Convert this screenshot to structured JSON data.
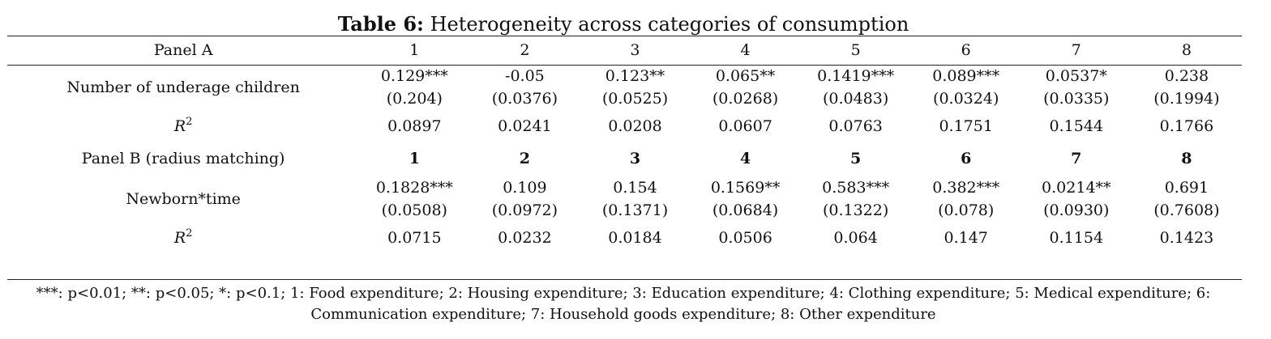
{
  "table": {
    "title_bold": "Table 6:",
    "title_rest": "Heterogeneity across categories of consumption",
    "panel_a": {
      "label": "Panel A",
      "columns": [
        "1",
        "2",
        "3",
        "4",
        "5",
        "6",
        "7",
        "8"
      ],
      "row_label": "Number of underage children",
      "coefficients": [
        "0.129***",
        "-0.05",
        "0.123**",
        "0.065**",
        "0.1419***",
        "0.089***",
        "0.0537*",
        "0.238"
      ],
      "std_errors": [
        "(0.204)",
        "(0.0376)",
        "(0.0525)",
        "(0.0268)",
        "(0.0483)",
        "(0.0324)",
        "(0.0335)",
        "(0.1994)"
      ],
      "r2_label": "R",
      "r2_sup": "2",
      "r2": [
        "0.0897",
        "0.0241",
        "0.0208",
        "0.0607",
        "0.0763",
        "0.1751",
        "0.1544",
        "0.1766"
      ]
    },
    "panel_b": {
      "label": "Panel B (radius matching)",
      "columns": [
        "1",
        "2",
        "3",
        "4",
        "5",
        "6",
        "7",
        "8"
      ],
      "row_label": "Newborn*time",
      "coefficients": [
        "0.1828***",
        "0.109",
        "0.154",
        "0.1569**",
        "0.583***",
        "0.382***",
        "0.0214**",
        "0.691"
      ],
      "std_errors": [
        "(0.0508)",
        "(0.0972)",
        "(0.1371)",
        "(0.0684)",
        "(0.1322)",
        "(0.078)",
        "(0.0930)",
        "(0.7608)"
      ],
      "r2_label": "R",
      "r2_sup": "2",
      "r2": [
        "0.0715",
        "0.0232",
        "0.0184",
        "0.0506",
        "0.064",
        "0.147",
        "0.1154",
        "0.1423"
      ]
    },
    "footnote_line1": "***: p<0.01; **: p<0.05; *: p<0.1; 1: Food expenditure; 2: Housing expenditure; 3: Education expenditure; 4: Clothing expenditure; 5: Medical expenditure; 6:",
    "footnote_line2": "Communication expenditure; 7: Household goods expenditure; 8: Other expenditure"
  }
}
